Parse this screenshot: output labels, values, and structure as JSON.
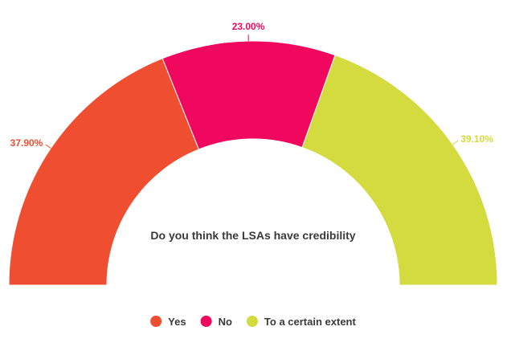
{
  "chart_data": {
    "type": "pie",
    "variant": "semi-donut",
    "title": "Do you think the LSAs have credibility",
    "categories": [
      "Yes",
      "No",
      "To a certain extent"
    ],
    "values": [
      37.9,
      23.0,
      39.1
    ],
    "value_labels": [
      "37.90%",
      "23.00%",
      "39.10%"
    ],
    "colors": [
      "#f04e30",
      "#f0085f",
      "#d4db3e"
    ],
    "legend_position": "bottom",
    "grid": false
  }
}
